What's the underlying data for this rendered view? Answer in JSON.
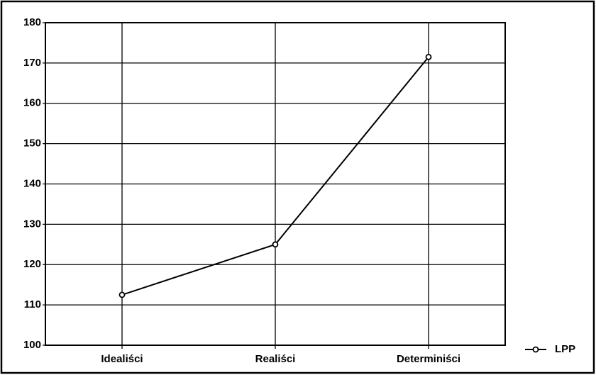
{
  "chart_data": {
    "type": "line",
    "categories": [
      "Idealiści",
      "Realiści",
      "Determiniści"
    ],
    "series": [
      {
        "name": "LPP",
        "color": "#000000",
        "values": [
          112.5,
          125,
          171.5
        ]
      }
    ],
    "ylim": [
      100,
      180
    ],
    "yticks": [
      100,
      110,
      120,
      130,
      140,
      150,
      160,
      170,
      180
    ],
    "grid": true,
    "legend": "right"
  }
}
